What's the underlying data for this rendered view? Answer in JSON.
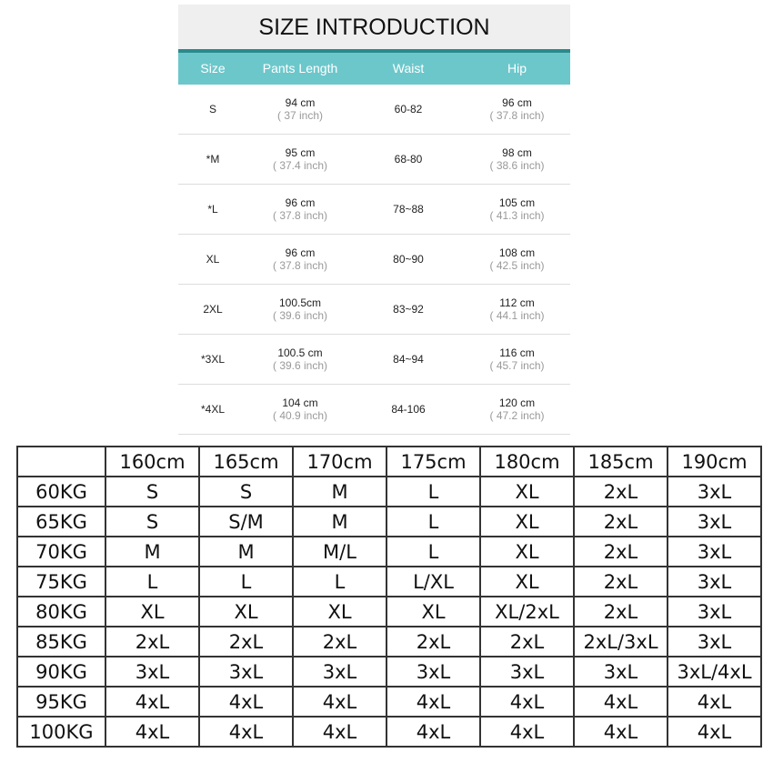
{
  "intro": {
    "title": "SIZE INTRODUCTION",
    "headers": [
      "Size",
      "Pants Length",
      "Waist",
      "Hip"
    ],
    "rows": [
      {
        "size": "S",
        "length": "94 cm",
        "length_in": "( 37 inch)",
        "waist": "60-82",
        "hip": "96 cm",
        "hip_in": "( 37.8 inch)"
      },
      {
        "size": "*M",
        "length": "95 cm",
        "length_in": "( 37.4 inch)",
        "waist": "68-80",
        "hip": "98 cm",
        "hip_in": "( 38.6 inch)"
      },
      {
        "size": "*L",
        "length": "96 cm",
        "length_in": "( 37.8 inch)",
        "waist": "78~88",
        "hip": "105 cm",
        "hip_in": "( 41.3 inch)"
      },
      {
        "size": "XL",
        "length": "96 cm",
        "length_in": "( 37.8 inch)",
        "waist": "80~90",
        "hip": "108 cm",
        "hip_in": "( 42.5 inch)"
      },
      {
        "size": "2XL",
        "length": "100.5cm",
        "length_in": "( 39.6 inch)",
        "waist": "83~92",
        "hip": "112 cm",
        "hip_in": "( 44.1 inch)"
      },
      {
        "size": "*3XL",
        "length": "100.5 cm",
        "length_in": "( 39.6 inch)",
        "waist": "84~94",
        "hip": "116 cm",
        "hip_in": "( 45.7 inch)"
      },
      {
        "size": "*4XL",
        "length": "104 cm",
        "length_in": "( 40.9 inch)",
        "waist": "84-106",
        "hip": "120 cm",
        "hip_in": "( 47.2 inch)"
      }
    ]
  },
  "grid": {
    "heights": [
      "160cm",
      "165cm",
      "170cm",
      "175cm",
      "180cm",
      "185cm",
      "190cm"
    ],
    "rows": [
      {
        "weight": "60KG",
        "sizes": [
          "S",
          "S",
          "M",
          "L",
          "XL",
          "2xL",
          "3xL"
        ]
      },
      {
        "weight": "65KG",
        "sizes": [
          "S",
          "S/M",
          "M",
          "L",
          "XL",
          "2xL",
          "3xL"
        ]
      },
      {
        "weight": "70KG",
        "sizes": [
          "M",
          "M",
          "M/L",
          "L",
          "XL",
          "2xL",
          "3xL"
        ]
      },
      {
        "weight": "75KG",
        "sizes": [
          "L",
          "L",
          "L",
          "L/XL",
          "XL",
          "2xL",
          "3xL"
        ]
      },
      {
        "weight": "80KG",
        "sizes": [
          "XL",
          "XL",
          "XL",
          "XL",
          "XL/2xL",
          "2xL",
          "3xL"
        ]
      },
      {
        "weight": "85KG",
        "sizes": [
          "2xL",
          "2xL",
          "2xL",
          "2xL",
          "2xL",
          "2xL/3xL",
          "3xL"
        ]
      },
      {
        "weight": "90KG",
        "sizes": [
          "3xL",
          "3xL",
          "3xL",
          "3xL",
          "3xL",
          "3xL",
          "3xL/4xL"
        ]
      },
      {
        "weight": "95KG",
        "sizes": [
          "4xL",
          "4xL",
          "4xL",
          "4xL",
          "4xL",
          "4xL",
          "4xL"
        ]
      },
      {
        "weight": "100KG",
        "sizes": [
          "4xL",
          "4xL",
          "4xL",
          "4xL",
          "4xL",
          "4xL",
          "4xL"
        ]
      }
    ]
  }
}
